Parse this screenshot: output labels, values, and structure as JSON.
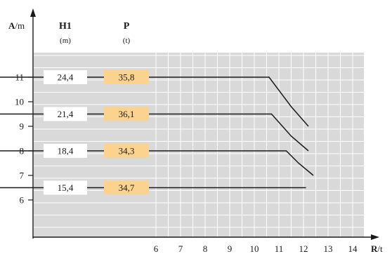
{
  "chart_data": {
    "type": "line",
    "y_axis": {
      "label_main": "A",
      "label_unit": "/m",
      "ticks": [
        "6",
        "7",
        "8",
        "9",
        "10",
        "11"
      ]
    },
    "x_axis": {
      "label_main": "R",
      "label_unit": "/t",
      "ticks": [
        "6",
        "7",
        "8",
        "9",
        "10",
        "11",
        "12",
        "13",
        "14"
      ]
    },
    "columns": [
      {
        "header": "H1",
        "unit": "(m)"
      },
      {
        "header": "P",
        "unit": "(t)"
      }
    ],
    "rows": [
      {
        "h1": "24,4",
        "p": "35,8",
        "y": 11
      },
      {
        "h1": "21,4",
        "p": "36,1",
        "y": 9.5
      },
      {
        "h1": "18,4",
        "p": "34,3",
        "y": 8
      },
      {
        "h1": "15,4",
        "p": "34,7",
        "y": 6.5
      }
    ],
    "series": [
      {
        "points": [
          [
            -1.8,
            11
          ],
          [
            10.6,
            11
          ],
          [
            11.5,
            9.8
          ],
          [
            12.2,
            9.0
          ]
        ]
      },
      {
        "points": [
          [
            -1.8,
            9.5
          ],
          [
            10.7,
            9.5
          ],
          [
            11.5,
            8.6
          ],
          [
            12.2,
            8.0
          ]
        ]
      },
      {
        "points": [
          [
            -1.8,
            8.0
          ],
          [
            11.3,
            8.0
          ],
          [
            11.8,
            7.5
          ],
          [
            12.4,
            7.0
          ]
        ]
      },
      {
        "points": [
          [
            -1.8,
            6.5
          ],
          [
            12.1,
            6.5
          ]
        ]
      }
    ],
    "colors": {
      "grid_bg": "#d9d9d9",
      "grid_line": "#ffffff",
      "p_cell": "#fcd38e",
      "h1_cell": "#ffffff",
      "line": "#1a1a1a"
    },
    "grid": true
  }
}
